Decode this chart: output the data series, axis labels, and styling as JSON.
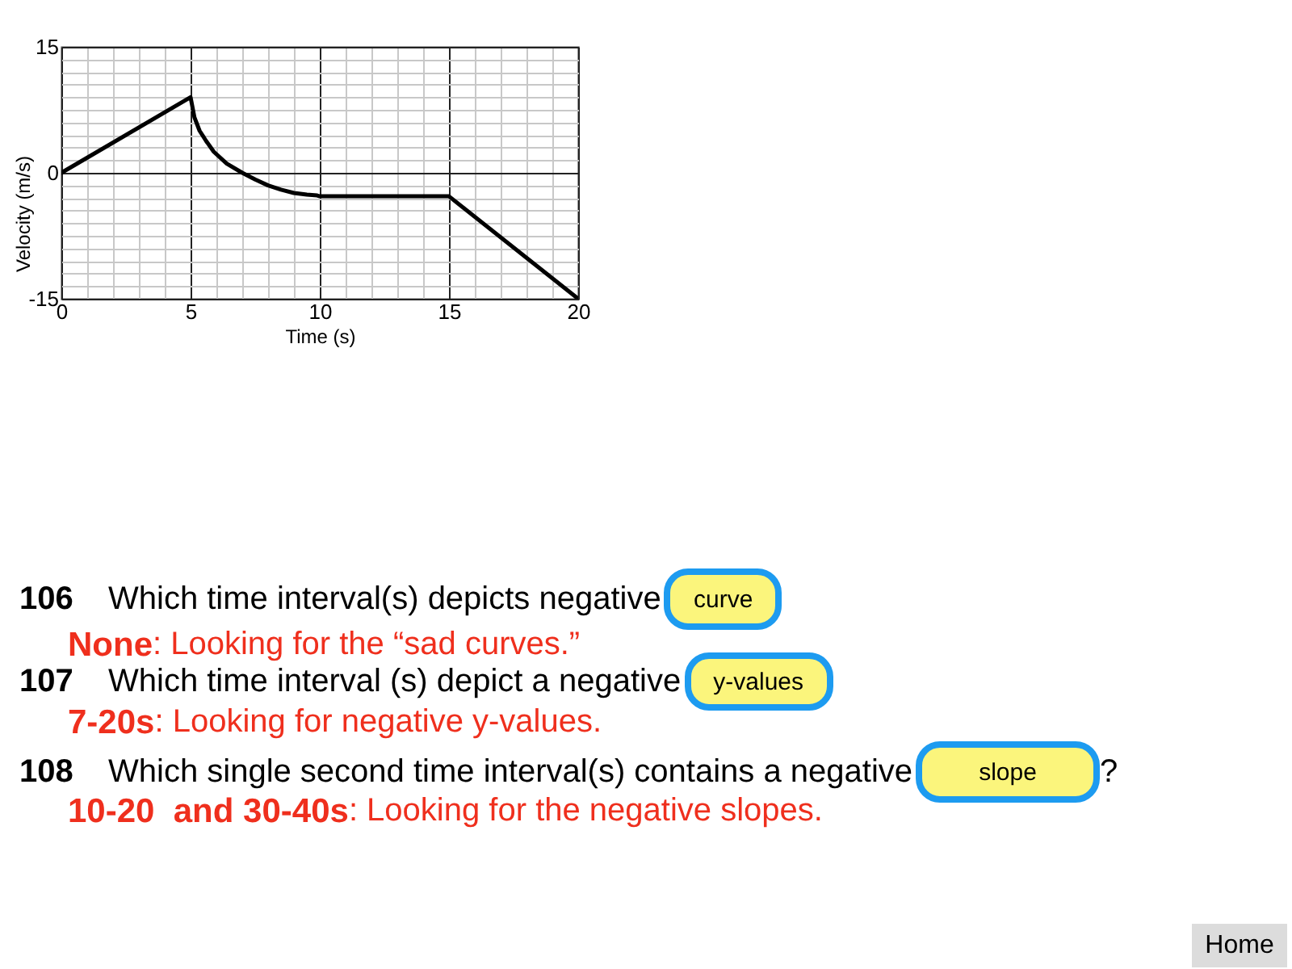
{
  "chart_data": {
    "type": "line",
    "xlabel": "Time (s)",
    "ylabel": "Velocity (m/s)",
    "x": [
      0,
      5,
      5.15,
      5.35,
      5.6,
      5.9,
      6.4,
      7,
      7.5,
      8,
      8.5,
      9,
      9.5,
      9.9,
      10,
      15,
      20
    ],
    "values": [
      0,
      9,
      6.6,
      5,
      3.8,
      2.5,
      1.1,
      0,
      -0.8,
      -1.5,
      -2,
      -2.4,
      -2.6,
      -2.7,
      -2.8,
      -2.8,
      -15
    ],
    "color": "#000000",
    "line_style": "solid",
    "xlim": [
      0,
      20
    ],
    "ylim": [
      -15,
      15
    ],
    "xticks": [
      0,
      {
        "value": 1,
        "label": null
      },
      {
        "value": 2,
        "label": null
      },
      {
        "value": 3,
        "label": null
      },
      {
        "value": 4,
        "label": null
      },
      5,
      {
        "value": 6,
        "label": null
      },
      {
        "value": 7,
        "label": null
      },
      {
        "value": 8,
        "label": null
      },
      {
        "value": 9,
        "label": null
      },
      10,
      {
        "value": 11,
        "label": null
      },
      {
        "value": 12,
        "label": null
      },
      {
        "value": 13,
        "label": null
      },
      {
        "value": 14,
        "label": null
      },
      15,
      {
        "value": 16,
        "label": null
      },
      {
        "value": 17,
        "label": null
      },
      {
        "value": 18,
        "label": null
      },
      {
        "value": 19,
        "label": null
      },
      20
    ],
    "yticks": [
      -15,
      {
        "value": -13.5,
        "label": null
      },
      {
        "value": -12,
        "label": null
      },
      {
        "value": -10.5,
        "label": null
      },
      {
        "value": -9,
        "label": null
      },
      {
        "value": -7.5,
        "label": null
      },
      {
        "value": -6,
        "label": null
      },
      {
        "value": -4.5,
        "label": null
      },
      {
        "value": -3,
        "label": null
      },
      {
        "value": -1.5,
        "label": null
      },
      0,
      {
        "value": 1.5,
        "label": null
      },
      {
        "value": 3,
        "label": null
      },
      {
        "value": 4.5,
        "label": null
      },
      {
        "value": 6,
        "label": null
      },
      {
        "value": 7.5,
        "label": null
      },
      {
        "value": 9,
        "label": null
      },
      {
        "value": 10.5,
        "label": null
      },
      {
        "value": 12,
        "label": null
      },
      {
        "value": 13.5,
        "label": null
      },
      15
    ],
    "grid": true,
    "annotations": [
      "106",
      "Which time interval(s) depicts negative",
      "curve",
      "None",
      ": Looking for the “sad curves.”",
      "107",
      "Which time interval (s) depict a negative",
      "y-values",
      "7-20s",
      ": Looking for negative y-values.",
      "108",
      "Which single second time interval(s) contains a negative",
      "slope",
      "?",
      "10-20  and 30-40s",
      ": Looking for the negative slopes.",
      "Home"
    ]
  }
}
